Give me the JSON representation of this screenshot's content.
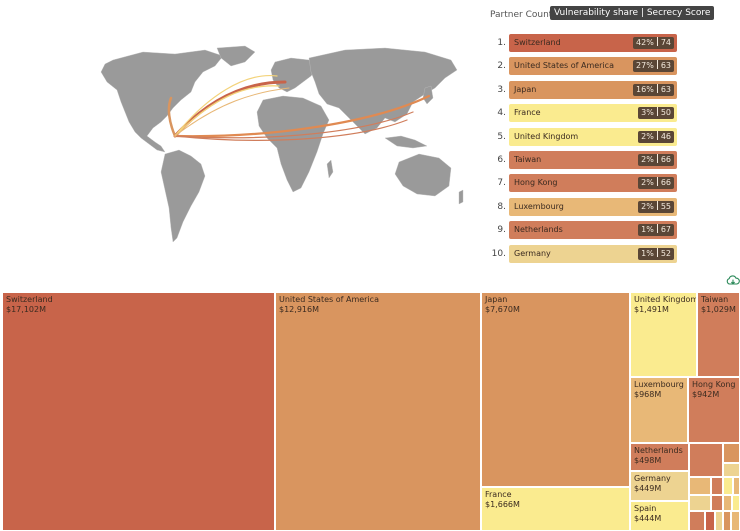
{
  "panel": {
    "partner_label": "Partner Country",
    "metric_label": "Vulnerability share | Secrecy Score"
  },
  "ranking": [
    {
      "rank": "1.",
      "country": "Switzerland",
      "share": "42%",
      "score": "74",
      "color": "#c8644a"
    },
    {
      "rank": "2.",
      "country": "United States of America",
      "share": "27%",
      "score": "63",
      "color": "#d9955f"
    },
    {
      "rank": "3.",
      "country": "Japan",
      "share": "16%",
      "score": "63",
      "color": "#d9955f"
    },
    {
      "rank": "4.",
      "country": "France",
      "share": "3%",
      "score": "50",
      "color": "#faeb8f"
    },
    {
      "rank": "5.",
      "country": "United Kingdom",
      "share": "2%",
      "score": "46",
      "color": "#faeb8f"
    },
    {
      "rank": "6.",
      "country": "Taiwan",
      "share": "2%",
      "score": "66",
      "color": "#d07d5b"
    },
    {
      "rank": "7.",
      "country": "Hong Kong",
      "share": "2%",
      "score": "66",
      "color": "#d07d5b"
    },
    {
      "rank": "8.",
      "country": "Luxembourg",
      "share": "2%",
      "score": "55",
      "color": "#e8b877"
    },
    {
      "rank": "9.",
      "country": "Netherlands",
      "share": "1%",
      "score": "67",
      "color": "#d07d5b"
    },
    {
      "rank": "10.",
      "country": "Germany",
      "share": "1%",
      "score": "52",
      "color": "#edd391"
    }
  ],
  "treemap": [
    {
      "name": "Switzerland",
      "value": "$17,102M",
      "color": "#c8644a"
    },
    {
      "name": "United States of America",
      "value": "$12,916M",
      "color": "#d9955f"
    },
    {
      "name": "Japan",
      "value": "$7,670M",
      "color": "#d9955f"
    },
    {
      "name": "France",
      "value": "$1,666M",
      "color": "#faeb8f"
    },
    {
      "name": "United Kingdom",
      "value": "$1,491M",
      "color": "#faeb8f"
    },
    {
      "name": "Taiwan",
      "value": "$1,029M",
      "color": "#d07d5b"
    },
    {
      "name": "Luxembourg",
      "value": "$968M",
      "color": "#e8b877"
    },
    {
      "name": "Hong Kong",
      "value": "$942M",
      "color": "#d07d5b"
    },
    {
      "name": "Netherlands",
      "value": "$498M",
      "color": "#d07d5b"
    },
    {
      "name": "Germany",
      "value": "$449M",
      "color": "#edd391"
    },
    {
      "name": "Spain",
      "value": "$444M",
      "color": "#faeb8f"
    }
  ],
  "colors": {
    "map_land": "#9a9a9a",
    "flow_dark": "#c8644a",
    "flow_mid": "#e08a52",
    "flow_light": "#f3d37a"
  },
  "icons": {
    "download": "cloud-download-icon"
  }
}
